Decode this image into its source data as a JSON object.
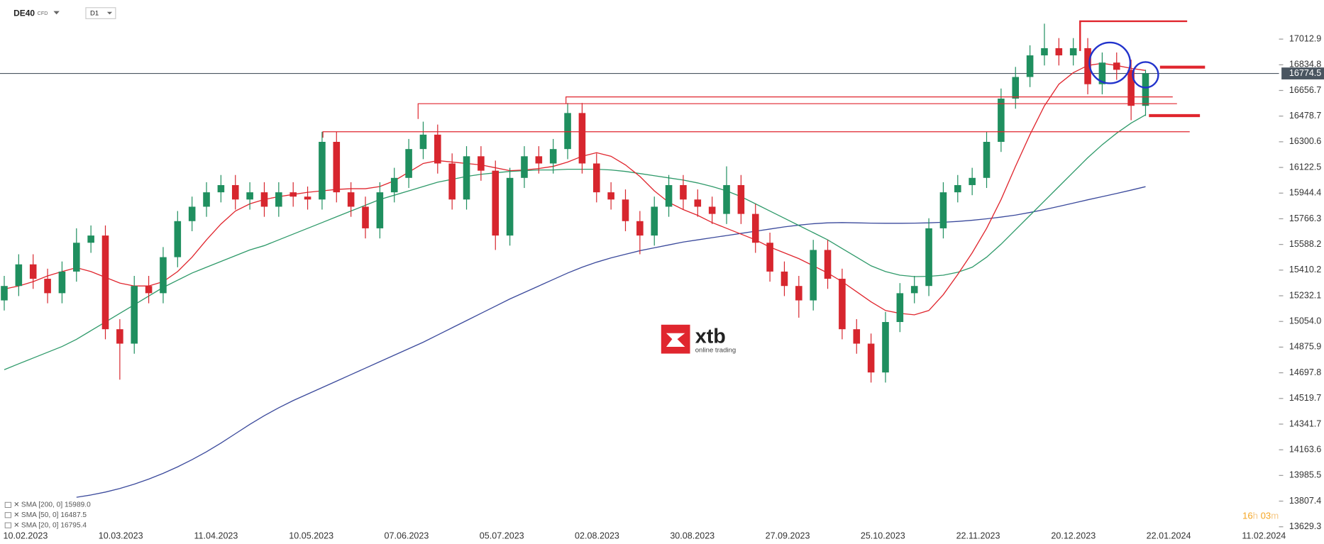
{
  "header": {
    "symbol": "DE40",
    "instrument": "CFD",
    "interval": "D1"
  },
  "logo": {
    "brand": "xtb",
    "tagline": "online trading"
  },
  "countdown": [
    "16",
    "h",
    "03",
    "m"
  ],
  "chart_data": {
    "type": "candlestick",
    "open": [
      15200,
      15300,
      15450,
      15350,
      15250,
      15400,
      15600,
      15650,
      15000,
      14900,
      15300,
      15250,
      15500,
      15750,
      15850,
      15950,
      16000,
      15900,
      15950,
      15850,
      15950,
      15920,
      15900,
      16300,
      15950,
      15850,
      15700,
      15950,
      16050,
      16250,
      16350,
      16150,
      15900,
      16200,
      16100,
      15650,
      16050,
      16200,
      16150,
      16250,
      16500,
      16150,
      15950,
      15900,
      15750,
      15650,
      15850,
      16000,
      15900,
      15850,
      15800,
      16000,
      15800,
      15600,
      15400,
      15300,
      15200,
      15550,
      15350,
      15000,
      14900,
      14700,
      15050,
      15250,
      15300,
      15700,
      15950,
      16000,
      16050,
      16300,
      16600,
      16750,
      16900,
      16950,
      16900,
      16950,
      16700,
      16850,
      16800,
      16550
    ],
    "high": [
      15370,
      15520,
      15520,
      15420,
      15470,
      15700,
      15720,
      15720,
      15070,
      15370,
      15370,
      15570,
      15820,
      15920,
      16020,
      16070,
      16070,
      16020,
      16020,
      16020,
      16020,
      15990,
      16370,
      16370,
      16020,
      15920,
      16020,
      16120,
      16320,
      16440,
      16420,
      16220,
      16270,
      16270,
      16170,
      16120,
      16270,
      16270,
      16320,
      16570,
      16570,
      16220,
      16020,
      15970,
      15820,
      15920,
      16070,
      16070,
      15970,
      15920,
      16130,
      16070,
      15870,
      15670,
      15470,
      15370,
      15620,
      15620,
      15420,
      15070,
      14970,
      15120,
      15320,
      15370,
      15770,
      16020,
      16070,
      16120,
      16370,
      16670,
      16820,
      16970,
      17120,
      17020,
      17020,
      17020,
      16920,
      16920,
      16870,
      16800
    ],
    "low": [
      15130,
      15230,
      15280,
      15180,
      15180,
      15330,
      15530,
      14930,
      14650,
      14830,
      15180,
      15180,
      15430,
      15680,
      15780,
      15880,
      15830,
      15830,
      15780,
      15780,
      15850,
      15830,
      15830,
      15880,
      15780,
      15630,
      15630,
      15880,
      15980,
      16180,
      16080,
      15830,
      15830,
      16030,
      15550,
      15580,
      15980,
      16080,
      16080,
      16180,
      16080,
      15880,
      15830,
      15680,
      15520,
      15580,
      15780,
      15830,
      15780,
      15730,
      15730,
      15730,
      15530,
      15330,
      15230,
      15080,
      15130,
      15280,
      14930,
      14830,
      14630,
      14630,
      14980,
      15180,
      15230,
      15630,
      15880,
      15930,
      15980,
      16230,
      16530,
      16680,
      16830,
      16830,
      16830,
      16630,
      16630,
      16730,
      16450,
      16480
    ],
    "close": [
      15300,
      15450,
      15350,
      15250,
      15400,
      15600,
      15650,
      15000,
      14900,
      15300,
      15250,
      15500,
      15750,
      15850,
      15950,
      16000,
      15900,
      15950,
      15850,
      15950,
      15920,
      15900,
      16300,
      15950,
      15850,
      15700,
      15950,
      16050,
      16250,
      16350,
      16150,
      15900,
      16200,
      16100,
      15650,
      16050,
      16200,
      16150,
      16250,
      16500,
      16150,
      15950,
      15900,
      15750,
      15650,
      15850,
      16000,
      15900,
      15850,
      15800,
      16000,
      15800,
      15600,
      15400,
      15300,
      15200,
      15550,
      15350,
      15000,
      14900,
      14700,
      15050,
      15250,
      15300,
      15700,
      15950,
      16000,
      16050,
      16300,
      16600,
      16750,
      16900,
      16950,
      16900,
      16950,
      16700,
      16850,
      16800,
      16550,
      16774.5
    ],
    "up_color": "#1f8f5f",
    "down_color": "#d7262e",
    "series": [
      {
        "name": "SMA [200, 0] 15989.0",
        "color": "#3b4a9c",
        "values": [
          null,
          null,
          null,
          null,
          null,
          13834,
          13850,
          13870,
          13895,
          13925,
          13960,
          14000,
          14045,
          14095,
          14150,
          14210,
          14275,
          14340,
          14400,
          14455,
          14505,
          14550,
          14595,
          14640,
          14685,
          14730,
          14775,
          14820,
          14865,
          14910,
          14960,
          15010,
          15060,
          15110,
          15160,
          15210,
          15255,
          15300,
          15345,
          15390,
          15430,
          15465,
          15495,
          15520,
          15545,
          15565,
          15585,
          15605,
          15620,
          15635,
          15650,
          15665,
          15680,
          15695,
          15710,
          15722,
          15732,
          15738,
          15740,
          15738,
          15736,
          15735,
          15735,
          15736,
          15738,
          15742,
          15748,
          15756,
          15766,
          15778,
          15792,
          15810,
          15830,
          15852,
          15875,
          15898,
          15920,
          15942,
          15965,
          15989.0
        ]
      },
      {
        "name": "SMA [50, 0] 16487.5",
        "color": "#2f9a6a",
        "values": [
          14719,
          14760,
          14800,
          14840,
          14880,
          14930,
          14990,
          15050,
          15110,
          15170,
          15230,
          15290,
          15340,
          15390,
          15430,
          15470,
          15510,
          15550,
          15580,
          15620,
          15660,
          15700,
          15740,
          15780,
          15820,
          15860,
          15900,
          15930,
          15960,
          15990,
          16020,
          16040,
          16060,
          16075,
          16085,
          16095,
          16100,
          16105,
          16105,
          16110,
          16110,
          16110,
          16105,
          16095,
          16080,
          16065,
          16050,
          16035,
          16015,
          15990,
          15960,
          15920,
          15870,
          15820,
          15770,
          15720,
          15670,
          15620,
          15560,
          15500,
          15440,
          15400,
          15375,
          15365,
          15367,
          15375,
          15395,
          15430,
          15500,
          15590,
          15690,
          15790,
          15890,
          15990,
          16090,
          16190,
          16280,
          16360,
          16430,
          16487.5
        ]
      },
      {
        "name": "SMA [20, 0] 16795.4",
        "color": "#e0262e",
        "values": [
          15279,
          15300,
          15330,
          15370,
          15400,
          15427,
          15400,
          15360,
          15320,
          15300,
          15300,
          15330,
          15400,
          15500,
          15620,
          15730,
          15820,
          15870,
          15900,
          15920,
          15935,
          15950,
          15960,
          15970,
          15975,
          15975,
          15990,
          16030,
          16090,
          16150,
          16170,
          16160,
          16150,
          16140,
          16120,
          16100,
          16105,
          16115,
          16130,
          16160,
          16200,
          16225,
          16200,
          16140,
          16060,
          15960,
          15880,
          15830,
          15790,
          15740,
          15700,
          15660,
          15620,
          15570,
          15530,
          15490,
          15440,
          15390,
          15330,
          15260,
          15190,
          15130,
          15110,
          15100,
          15130,
          15240,
          15380,
          15530,
          15700,
          15900,
          16130,
          16350,
          16550,
          16700,
          16780,
          16830,
          16845,
          16830,
          16810,
          16795.4
        ]
      }
    ],
    "last_price": 16774.5,
    "ylim": [
      13598.3,
      17284.2
    ],
    "yticks": [
      17012.9,
      16834.8,
      16656.7,
      16478.7,
      16300.6,
      16122.5,
      15944.4,
      15766.3,
      15588.2,
      15410.2,
      15232.1,
      {
        "value": 15054.0,
        "label": "15054.0"
      },
      14875.9,
      14697.8,
      14519.7,
      14341.7,
      14163.6,
      13985.5,
      13807.4,
      13629.3
    ],
    "x_labels": [
      "10.02.2023",
      "10.03.2023",
      "11.04.2023",
      "10.05.2023",
      "07.06.2023",
      "05.07.2023",
      "02.08.2023",
      "30.08.2023",
      "27.09.2023",
      "25.10.2023",
      "22.11.2023",
      "20.12.2023",
      "22.01.2024",
      "11.02.2024"
    ]
  }
}
